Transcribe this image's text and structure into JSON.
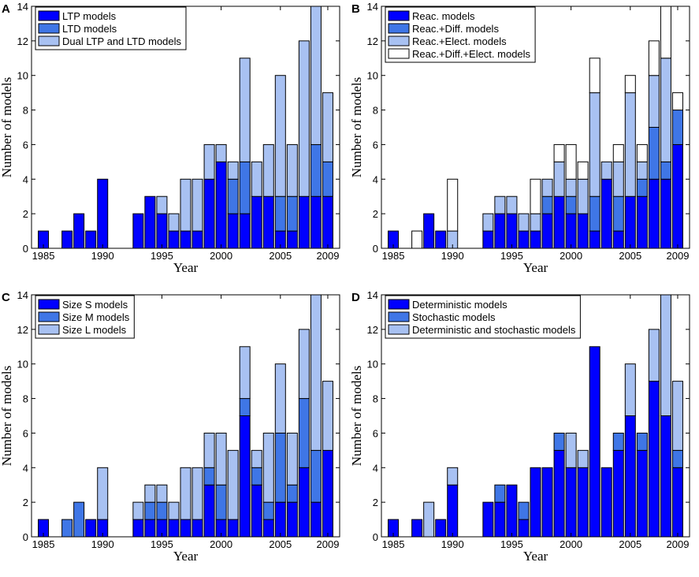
{
  "colors": {
    "dark": "#0000ff",
    "mid": "#3f76e6",
    "light": "#a8c1f2",
    "white": "#ffffff",
    "edge": "#000000"
  },
  "chart_data": [
    {
      "type": "bar",
      "stacked": true,
      "panel_label": "A",
      "xlabel": "Year",
      "ylabel": "Number of models",
      "xlim": [
        1984,
        2010
      ],
      "ylim": [
        0,
        14
      ],
      "x_ticks": [
        1985,
        1990,
        1995,
        2000,
        2005,
        2009
      ],
      "y_ticks": [
        0,
        2,
        4,
        6,
        8,
        10,
        12,
        14
      ],
      "legend_position": "top-left",
      "years": [
        1985,
        1986,
        1987,
        1988,
        1989,
        1990,
        1991,
        1992,
        1993,
        1994,
        1995,
        1996,
        1997,
        1998,
        1999,
        2000,
        2001,
        2002,
        2003,
        2004,
        2005,
        2006,
        2007,
        2008,
        2009
      ],
      "series": [
        {
          "name": "LTP models",
          "color": "#0000ff",
          "values": [
            1,
            0,
            1,
            2,
            1,
            4,
            0,
            0,
            2,
            3,
            2,
            1,
            1,
            1,
            4,
            5,
            2,
            2,
            3,
            3,
            1,
            1,
            3,
            3,
            3
          ]
        },
        {
          "name": "LTD models",
          "color": "#3f76e6",
          "values": [
            0,
            0,
            0,
            0,
            0,
            0,
            0,
            0,
            0,
            0,
            0,
            0,
            0,
            0,
            0,
            0,
            2,
            3,
            0,
            0,
            2,
            2,
            0,
            3,
            2
          ]
        },
        {
          "name": "Dual LTP and LTD models",
          "color": "#a8c1f2",
          "values": [
            0,
            0,
            0,
            0,
            0,
            0,
            0,
            0,
            0,
            0,
            1,
            1,
            3,
            3,
            2,
            1,
            1,
            6,
            2,
            3,
            7,
            3,
            9,
            8,
            4
          ]
        }
      ]
    },
    {
      "type": "bar",
      "stacked": true,
      "panel_label": "B",
      "xlabel": "Year",
      "ylabel": "Number of models",
      "xlim": [
        1984,
        2010
      ],
      "ylim": [
        0,
        14
      ],
      "x_ticks": [
        1985,
        1990,
        1995,
        2000,
        2005,
        2009
      ],
      "y_ticks": [
        0,
        2,
        4,
        6,
        8,
        10,
        12,
        14
      ],
      "legend_position": "top-left",
      "years": [
        1985,
        1986,
        1987,
        1988,
        1989,
        1990,
        1991,
        1992,
        1993,
        1994,
        1995,
        1996,
        1997,
        1998,
        1999,
        2000,
        2001,
        2002,
        2003,
        2004,
        2005,
        2006,
        2007,
        2008,
        2009
      ],
      "series": [
        {
          "name": "Reac. models",
          "color": "#0000ff",
          "values": [
            1,
            0,
            0,
            2,
            1,
            0,
            0,
            0,
            1,
            2,
            2,
            1,
            1,
            2,
            3,
            2,
            2,
            1,
            4,
            1,
            3,
            3,
            4,
            4,
            6
          ]
        },
        {
          "name": "Reac.+Diff. models",
          "color": "#3f76e6",
          "values": [
            0,
            0,
            0,
            0,
            0,
            0,
            0,
            0,
            0,
            0,
            0,
            0,
            0,
            1,
            0,
            1,
            0,
            2,
            0,
            2,
            0,
            1,
            3,
            1,
            2
          ]
        },
        {
          "name": "Reac.+Elect. models",
          "color": "#a8c1f2",
          "values": [
            0,
            0,
            0,
            0,
            0,
            1,
            0,
            0,
            1,
            1,
            1,
            1,
            1,
            1,
            2,
            1,
            2,
            6,
            1,
            2,
            6,
            1,
            3,
            6,
            0
          ]
        },
        {
          "name": "Reac.+Diff.+Elect. models",
          "color": "#ffffff",
          "values": [
            0,
            0,
            1,
            0,
            0,
            3,
            0,
            0,
            0,
            0,
            0,
            0,
            2,
            0,
            1,
            2,
            1,
            2,
            0,
            1,
            1,
            1,
            2,
            3,
            1
          ]
        }
      ]
    },
    {
      "type": "bar",
      "stacked": true,
      "panel_label": "C",
      "xlabel": "Year",
      "ylabel": "Number of models",
      "xlim": [
        1984,
        2010
      ],
      "ylim": [
        0,
        14
      ],
      "x_ticks": [
        1985,
        1990,
        1995,
        2000,
        2005,
        2009
      ],
      "y_ticks": [
        0,
        2,
        4,
        6,
        8,
        10,
        12,
        14
      ],
      "legend_position": "top-left",
      "years": [
        1985,
        1986,
        1987,
        1988,
        1989,
        1990,
        1991,
        1992,
        1993,
        1994,
        1995,
        1996,
        1997,
        1998,
        1999,
        2000,
        2001,
        2002,
        2003,
        2004,
        2005,
        2006,
        2007,
        2008,
        2009
      ],
      "series": [
        {
          "name": "Size S models",
          "color": "#0000ff",
          "values": [
            1,
            0,
            0,
            0,
            1,
            1,
            0,
            0,
            1,
            1,
            1,
            1,
            1,
            1,
            3,
            1,
            1,
            7,
            3,
            1,
            2,
            2,
            4,
            2,
            5
          ]
        },
        {
          "name": "Size M models",
          "color": "#3f76e6",
          "values": [
            0,
            0,
            1,
            2,
            0,
            0,
            0,
            0,
            0,
            1,
            1,
            0,
            0,
            0,
            1,
            2,
            0,
            1,
            1,
            1,
            4,
            1,
            4,
            3,
            0
          ]
        },
        {
          "name": "Size L models",
          "color": "#a8c1f2",
          "values": [
            0,
            0,
            0,
            0,
            0,
            3,
            0,
            0,
            1,
            1,
            1,
            1,
            3,
            3,
            2,
            3,
            4,
            3,
            1,
            4,
            4,
            3,
            4,
            9,
            4
          ]
        }
      ]
    },
    {
      "type": "bar",
      "stacked": true,
      "panel_label": "D",
      "xlabel": "Year",
      "ylabel": "Number of models",
      "xlim": [
        1984,
        2010
      ],
      "ylim": [
        0,
        14
      ],
      "x_ticks": [
        1985,
        1990,
        1995,
        2000,
        2005,
        2009
      ],
      "y_ticks": [
        0,
        2,
        4,
        6,
        8,
        10,
        12,
        14
      ],
      "legend_position": "top-left",
      "years": [
        1985,
        1986,
        1987,
        1988,
        1989,
        1990,
        1991,
        1992,
        1993,
        1994,
        1995,
        1996,
        1997,
        1998,
        1999,
        2000,
        2001,
        2002,
        2003,
        2004,
        2005,
        2006,
        2007,
        2008,
        2009
      ],
      "series": [
        {
          "name": "Deterministic models",
          "color": "#0000ff",
          "values": [
            1,
            0,
            1,
            0,
            1,
            3,
            0,
            0,
            2,
            2,
            3,
            1,
            4,
            4,
            5,
            4,
            4,
            11,
            4,
            5,
            7,
            5,
            9,
            7,
            4
          ]
        },
        {
          "name": "Stochastic models",
          "color": "#3f76e6",
          "values": [
            0,
            0,
            0,
            0,
            0,
            0,
            0,
            0,
            0,
            1,
            0,
            1,
            0,
            0,
            1,
            0,
            0,
            0,
            0,
            1,
            0,
            1,
            0,
            0,
            1
          ]
        },
        {
          "name": "Deterministic and stochastic models",
          "color": "#a8c1f2",
          "values": [
            0,
            0,
            0,
            2,
            0,
            1,
            0,
            0,
            0,
            0,
            0,
            0,
            0,
            0,
            0,
            2,
            1,
            0,
            0,
            0,
            3,
            0,
            3,
            7,
            4
          ]
        }
      ]
    }
  ]
}
